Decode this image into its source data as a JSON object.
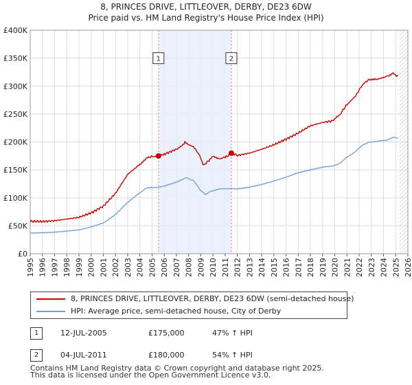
{
  "chart_data": {
    "type": "line",
    "title": "8, PRINCES DRIVE, LITTLEOVER, DERBY, DE23 6DW",
    "subtitle": "Price paid vs. HM Land Registry's House Price Index (HPI)",
    "xlim": [
      1995,
      2026
    ],
    "ylim": [
      0,
      400000
    ],
    "y_ticks": [
      {
        "value": 0,
        "label": "£0"
      },
      {
        "value": 50000,
        "label": "£50K"
      },
      {
        "value": 100000,
        "label": "£100K"
      },
      {
        "value": 150000,
        "label": "£150K"
      },
      {
        "value": 200000,
        "label": "£200K"
      },
      {
        "value": 250000,
        "label": "£250K"
      },
      {
        "value": 300000,
        "label": "£300K"
      },
      {
        "value": 350000,
        "label": "£350K"
      },
      {
        "value": 400000,
        "label": "£400K"
      }
    ],
    "x_ticks": [
      "1995",
      "1996",
      "1997",
      "1998",
      "1999",
      "2000",
      "2001",
      "2002",
      "2003",
      "2004",
      "2005",
      "2006",
      "2007",
      "2008",
      "2009",
      "2010",
      "2011",
      "2012",
      "2013",
      "2014",
      "2015",
      "2016",
      "2017",
      "2018",
      "2019",
      "2020",
      "2021",
      "2022",
      "2023",
      "2024",
      "2025",
      "2026"
    ],
    "grid": true,
    "ownership_shading": [
      2005.53,
      2011.51
    ],
    "data_end_hatch_start": 2025.3,
    "series": [
      {
        "name": "8, PRINCES DRIVE, LITTLEOVER, DERBY, DE23 6DW (semi-detached house)",
        "color": "#cc0000",
        "points": [
          [
            1995,
            58000
          ],
          [
            1996,
            57500
          ],
          [
            1997,
            59000
          ],
          [
            1998,
            62000
          ],
          [
            1999,
            65000
          ],
          [
            2000,
            73000
          ],
          [
            2001,
            85000
          ],
          [
            2002,
            108000
          ],
          [
            2003,
            142000
          ],
          [
            2004,
            160000
          ],
          [
            2004.7,
            173000
          ],
          [
            2005.53,
            175000
          ],
          [
            2006,
            178000
          ],
          [
            2007,
            187000
          ],
          [
            2007.7,
            199000
          ],
          [
            2008.3,
            193000
          ],
          [
            2008.9,
            177000
          ],
          [
            2009.2,
            158000
          ],
          [
            2009.6,
            166000
          ],
          [
            2010,
            173000
          ],
          [
            2010.6,
            171000
          ],
          [
            2011.0,
            172000
          ],
          [
            2011.51,
            180000
          ],
          [
            2012,
            176000
          ],
          [
            2013,
            180000
          ],
          [
            2014,
            187000
          ],
          [
            2015,
            195000
          ],
          [
            2016,
            205000
          ],
          [
            2017,
            216000
          ],
          [
            2018,
            229000
          ],
          [
            2019,
            235000
          ],
          [
            2019.9,
            238000
          ],
          [
            2020.5,
            252000
          ],
          [
            2021,
            267000
          ],
          [
            2021.7,
            282000
          ],
          [
            2022.2,
            300000
          ],
          [
            2022.8,
            312000
          ],
          [
            2023.5,
            312000
          ],
          [
            2024.2,
            318000
          ],
          [
            2024.8,
            322000
          ],
          [
            2025.2,
            318000
          ]
        ]
      },
      {
        "name": "HPI: Average price, semi-detached house, City of Derby",
        "color": "#6f9dd6",
        "points": [
          [
            1995,
            37000
          ],
          [
            1996,
            37500
          ],
          [
            1997,
            38500
          ],
          [
            1998,
            40500
          ],
          [
            1999,
            42500
          ],
          [
            2000,
            48000
          ],
          [
            2001,
            55000
          ],
          [
            2002,
            70000
          ],
          [
            2003,
            92000
          ],
          [
            2004,
            109000
          ],
          [
            2004.6,
            118000
          ],
          [
            2005.53,
            119000
          ],
          [
            2006,
            121000
          ],
          [
            2007,
            128000
          ],
          [
            2007.8,
            136000
          ],
          [
            2008.4,
            131000
          ],
          [
            2009.0,
            113000
          ],
          [
            2009.4,
            106000
          ],
          [
            2009.8,
            112000
          ],
          [
            2010.5,
            116000
          ],
          [
            2011.51,
            116500
          ],
          [
            2012,
            116000
          ],
          [
            2013,
            119000
          ],
          [
            2014,
            124000
          ],
          [
            2015,
            130000
          ],
          [
            2016,
            137000
          ],
          [
            2017,
            145000
          ],
          [
            2018,
            150000
          ],
          [
            2019,
            155000
          ],
          [
            2019.9,
            157000
          ],
          [
            2020.5,
            163000
          ],
          [
            2021,
            173000
          ],
          [
            2021.7,
            183000
          ],
          [
            2022.2,
            193000
          ],
          [
            2022.8,
            200000
          ],
          [
            2023.5,
            201000
          ],
          [
            2024.2,
            203000
          ],
          [
            2024.8,
            208000
          ],
          [
            2025.2,
            207000
          ]
        ]
      }
    ],
    "annotations": [
      {
        "label": "1",
        "x": 2005.53,
        "value": 175000
      },
      {
        "label": "2",
        "x": 2011.51,
        "value": 180000
      }
    ]
  },
  "legend": {
    "property_label": "8, PRINCES DRIVE, LITTLEOVER, DERBY, DE23 6DW (semi-detached house)",
    "hpi_label": "HPI: Average price, semi-detached house, City of Derby",
    "property_color": "#cc0000",
    "hpi_color": "#6f9dd6"
  },
  "transactions": [
    {
      "badge": "1",
      "date": "12-JUL-2005",
      "price": "£175,000",
      "hpi": "47% ↑ HPI"
    },
    {
      "badge": "2",
      "date": "04-JUL-2011",
      "price": "£180,000",
      "hpi": "54% ↑ HPI"
    }
  ],
  "footer": {
    "line1": "Contains HM Land Registry data © Crown copyright and database right 2025.",
    "line2": "This data is licensed under the Open Government Licence v3.0."
  }
}
